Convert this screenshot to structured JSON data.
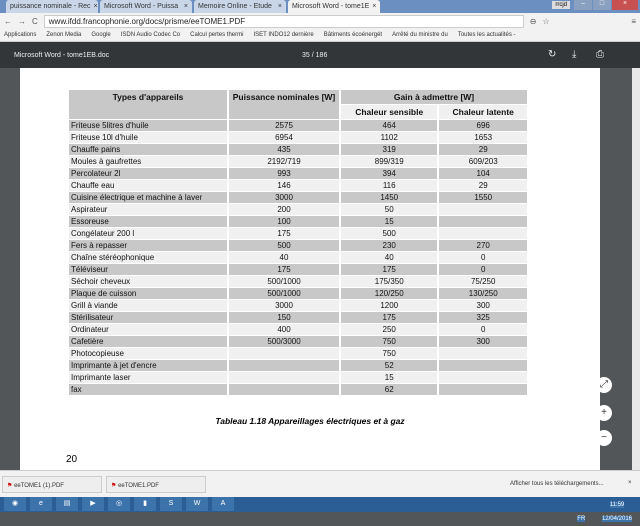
{
  "browser": {
    "tabs": [
      {
        "label": "puissance nominale - Rec"
      },
      {
        "label": "Microsoft Word - Puissa"
      },
      {
        "label": "Memoire Online - Etude"
      },
      {
        "label": "Microsoft Word - tome1E"
      }
    ],
    "user": "rrcjd",
    "url": "www.ifdd.francophonie.org/docs/prisme/eeTOME1.PDF",
    "bookmarks": [
      "Applications",
      "Zenon Media",
      "Google",
      "ISDN Audio Codec Co",
      "Calcul pertes thermi",
      "ISET INDO12 dernière",
      "Bâtiments écoénergét",
      "Arrêté du ministre du",
      "Toutes les actualités -"
    ]
  },
  "pdf": {
    "title": "Microsoft Word - tome1EB.doc",
    "page": "35",
    "total": "186",
    "page_sep": "/"
  },
  "table": {
    "headers": {
      "type": "Types d'appareils",
      "power": "Puissance nominales [W]",
      "gain": "Gain à admettre [W]",
      "sensible": "Chaleur sensible",
      "latent": "Chaleur latente"
    },
    "rows": [
      [
        "Friteuse 5litres d'huile",
        "2575",
        "464",
        "696"
      ],
      [
        "Friteuse 10l d'huile",
        "6954",
        "1102",
        "1653"
      ],
      [
        "Chauffe pains",
        "435",
        "319",
        "29"
      ],
      [
        "Moules à gaufrettes",
        "2192/719",
        "899/319",
        "609/203"
      ],
      [
        "Percolateur 2l",
        "993",
        "394",
        "104"
      ],
      [
        "Chauffe eau",
        "146",
        "116",
        "29"
      ],
      [
        "Cuisine électrique et machine à laver",
        "3000",
        "1450",
        "1550"
      ],
      [
        "Aspirateur",
        "200",
        "50",
        ""
      ],
      [
        "Essoreuse",
        "100",
        "15",
        ""
      ],
      [
        "Congélateur 200 l",
        "175",
        "500",
        ""
      ],
      [
        "Fers à repasser",
        "500",
        "230",
        "270"
      ],
      [
        "Chaîne stéréophonique",
        "40",
        "40",
        "0"
      ],
      [
        "Téléviseur",
        "175",
        "175",
        "0"
      ],
      [
        "Séchoir cheveux",
        "500/1000",
        "175/350",
        "75/250"
      ],
      [
        "Plaque de cuisson",
        "500/1000",
        "120/250",
        "130/250"
      ],
      [
        "Grill à viande",
        "3000",
        "1200",
        "300"
      ],
      [
        "Stérilisateur",
        "150",
        "175",
        "325"
      ],
      [
        "Ordinateur",
        "400",
        "250",
        "0"
      ],
      [
        "Cafetière",
        "500/3000",
        "750",
        "300"
      ],
      [
        "Photocopieuse",
        "",
        "750",
        ""
      ],
      [
        "Imprimante à jet d'encre",
        "",
        "52",
        ""
      ],
      [
        "Imprimante laser",
        "",
        "15",
        ""
      ],
      [
        "fax",
        "",
        "62",
        ""
      ]
    ],
    "caption": "Tableau 1.18 Appareillages électriques et à gaz"
  },
  "page_number": "20",
  "downloads": {
    "items": [
      "eeTOME1 (1).PDF",
      "eeTOME1.PDF"
    ],
    "show_all": "Afficher tous les téléchargements..."
  },
  "taskbar": {
    "lang": "FR",
    "time": "11:59",
    "date": "12/04/2016"
  }
}
